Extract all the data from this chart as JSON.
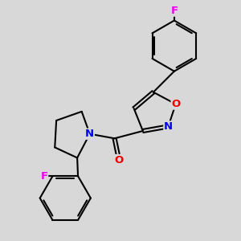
{
  "bg_color": "#d8d8d8",
  "bond_color": "#000000",
  "bond_width": 1.5,
  "atom_colors": {
    "N": "#0000ee",
    "O": "#ee0000",
    "F": "#ee00ee",
    "C": "#000000"
  },
  "font_size": 9.5
}
